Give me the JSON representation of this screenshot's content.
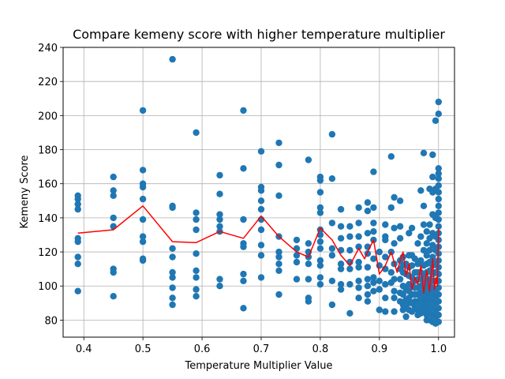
{
  "chart_data": {
    "type": "scatter",
    "title": "Compare kemeny score with higher temperature multiplier",
    "xlabel": "Temperature Multiplier Value",
    "ylabel": "Kemeny Score",
    "xlim": [
      0.365,
      1.027
    ],
    "ylim": [
      70,
      240
    ],
    "xticks": [
      0.4,
      0.5,
      0.6,
      0.7,
      0.8,
      0.9,
      1.0
    ],
    "xtick_labels": [
      "0.4",
      "0.5",
      "0.6",
      "0.7",
      "0.8",
      "0.9",
      "1.0"
    ],
    "yticks": [
      80,
      100,
      120,
      140,
      160,
      180,
      200,
      220,
      240
    ],
    "ytick_labels": [
      "80",
      "100",
      "120",
      "140",
      "160",
      "180",
      "200",
      "220",
      "240"
    ],
    "grid": true,
    "colors": {
      "points": "#1f77b4",
      "line": "#ff0000",
      "grid": "#b0b0b0"
    },
    "scatter_points": [
      [
        0.39,
        153
      ],
      [
        0.39,
        151
      ],
      [
        0.39,
        148
      ],
      [
        0.39,
        145
      ],
      [
        0.39,
        128
      ],
      [
        0.39,
        126
      ],
      [
        0.39,
        117
      ],
      [
        0.39,
        113
      ],
      [
        0.39,
        97
      ],
      [
        0.45,
        164
      ],
      [
        0.45,
        156
      ],
      [
        0.45,
        153
      ],
      [
        0.45,
        140
      ],
      [
        0.45,
        135
      ],
      [
        0.45,
        110
      ],
      [
        0.45,
        108
      ],
      [
        0.45,
        94
      ],
      [
        0.5,
        203
      ],
      [
        0.5,
        168
      ],
      [
        0.5,
        160
      ],
      [
        0.5,
        158
      ],
      [
        0.5,
        151
      ],
      [
        0.5,
        139
      ],
      [
        0.5,
        129
      ],
      [
        0.5,
        126
      ],
      [
        0.5,
        116
      ],
      [
        0.5,
        115
      ],
      [
        0.55,
        233
      ],
      [
        0.55,
        147
      ],
      [
        0.55,
        146
      ],
      [
        0.55,
        122
      ],
      [
        0.55,
        117
      ],
      [
        0.55,
        108
      ],
      [
        0.55,
        105
      ],
      [
        0.55,
        99
      ],
      [
        0.55,
        93
      ],
      [
        0.55,
        89
      ],
      [
        0.59,
        190
      ],
      [
        0.59,
        143
      ],
      [
        0.59,
        139
      ],
      [
        0.59,
        133
      ],
      [
        0.59,
        119
      ],
      [
        0.59,
        109
      ],
      [
        0.59,
        105
      ],
      [
        0.59,
        98
      ],
      [
        0.59,
        94
      ],
      [
        0.63,
        165
      ],
      [
        0.63,
        154
      ],
      [
        0.63,
        142
      ],
      [
        0.63,
        139
      ],
      [
        0.63,
        135
      ],
      [
        0.63,
        132
      ],
      [
        0.63,
        104
      ],
      [
        0.63,
        100
      ],
      [
        0.67,
        203
      ],
      [
        0.67,
        169
      ],
      [
        0.67,
        139
      ],
      [
        0.67,
        125
      ],
      [
        0.67,
        123
      ],
      [
        0.67,
        107
      ],
      [
        0.67,
        103
      ],
      [
        0.67,
        87
      ],
      [
        0.7,
        179
      ],
      [
        0.7,
        158
      ],
      [
        0.7,
        156
      ],
      [
        0.7,
        150
      ],
      [
        0.7,
        145
      ],
      [
        0.7,
        139
      ],
      [
        0.7,
        133
      ],
      [
        0.7,
        124
      ],
      [
        0.7,
        118
      ],
      [
        0.7,
        105
      ],
      [
        0.73,
        184
      ],
      [
        0.73,
        171
      ],
      [
        0.73,
        153
      ],
      [
        0.73,
        129
      ],
      [
        0.73,
        120
      ],
      [
        0.73,
        117
      ],
      [
        0.73,
        113
      ],
      [
        0.73,
        109
      ],
      [
        0.73,
        95
      ],
      [
        0.76,
        127
      ],
      [
        0.76,
        122
      ],
      [
        0.76,
        118
      ],
      [
        0.76,
        114
      ],
      [
        0.76,
        104
      ],
      [
        0.78,
        174
      ],
      [
        0.78,
        125
      ],
      [
        0.78,
        120
      ],
      [
        0.78,
        117
      ],
      [
        0.78,
        113
      ],
      [
        0.78,
        104
      ],
      [
        0.78,
        93
      ],
      [
        0.78,
        91
      ],
      [
        0.8,
        164
      ],
      [
        0.8,
        162
      ],
      [
        0.8,
        155
      ],
      [
        0.8,
        146
      ],
      [
        0.8,
        143
      ],
      [
        0.8,
        133
      ],
      [
        0.8,
        130
      ],
      [
        0.8,
        126
      ],
      [
        0.8,
        122
      ],
      [
        0.8,
        115
      ],
      [
        0.8,
        112
      ],
      [
        0.8,
        105
      ],
      [
        0.8,
        101
      ],
      [
        0.82,
        189
      ],
      [
        0.82,
        163
      ],
      [
        0.82,
        137
      ],
      [
        0.82,
        122
      ],
      [
        0.82,
        118
      ],
      [
        0.82,
        103
      ],
      [
        0.82,
        89
      ],
      [
        0.835,
        145
      ],
      [
        0.835,
        135
      ],
      [
        0.835,
        128
      ],
      [
        0.835,
        121
      ],
      [
        0.835,
        113
      ],
      [
        0.835,
        110
      ],
      [
        0.835,
        101
      ],
      [
        0.835,
        98
      ],
      [
        0.85,
        135
      ],
      [
        0.85,
        129
      ],
      [
        0.85,
        121
      ],
      [
        0.85,
        114
      ],
      [
        0.85,
        110
      ],
      [
        0.85,
        101
      ],
      [
        0.85,
        84
      ],
      [
        0.865,
        146
      ],
      [
        0.865,
        137
      ],
      [
        0.865,
        129
      ],
      [
        0.865,
        123
      ],
      [
        0.865,
        114
      ],
      [
        0.865,
        111
      ],
      [
        0.865,
        103
      ],
      [
        0.865,
        99
      ],
      [
        0.865,
        93
      ],
      [
        0.88,
        149
      ],
      [
        0.88,
        144
      ],
      [
        0.88,
        131
      ],
      [
        0.88,
        123
      ],
      [
        0.88,
        119
      ],
      [
        0.88,
        111
      ],
      [
        0.88,
        104
      ],
      [
        0.88,
        100
      ],
      [
        0.88,
        95
      ],
      [
        0.88,
        91
      ],
      [
        0.89,
        167
      ],
      [
        0.89,
        146
      ],
      [
        0.89,
        137
      ],
      [
        0.89,
        132
      ],
      [
        0.89,
        127
      ],
      [
        0.89,
        116
      ],
      [
        0.89,
        105
      ],
      [
        0.89,
        102
      ],
      [
        0.89,
        97
      ],
      [
        0.9,
        120
      ],
      [
        0.9,
        112
      ],
      [
        0.9,
        103
      ],
      [
        0.9,
        98
      ],
      [
        0.9,
        86
      ],
      [
        0.91,
        136
      ],
      [
        0.91,
        129
      ],
      [
        0.91,
        127
      ],
      [
        0.91,
        117
      ],
      [
        0.91,
        110
      ],
      [
        0.91,
        101
      ],
      [
        0.91,
        93
      ],
      [
        0.91,
        85
      ],
      [
        0.92,
        176
      ],
      [
        0.92,
        146
      ],
      [
        0.92,
        120
      ],
      [
        0.92,
        108
      ],
      [
        0.92,
        102
      ],
      [
        0.925,
        152
      ],
      [
        0.925,
        134
      ],
      [
        0.925,
        125
      ],
      [
        0.925,
        113
      ],
      [
        0.925,
        104
      ],
      [
        0.925,
        97
      ],
      [
        0.925,
        93
      ],
      [
        0.925,
        85
      ],
      [
        0.935,
        150
      ],
      [
        0.935,
        135
      ],
      [
        0.935,
        128
      ],
      [
        0.935,
        115
      ],
      [
        0.935,
        110
      ],
      [
        0.935,
        104
      ],
      [
        0.935,
        96
      ],
      [
        0.935,
        91
      ],
      [
        0.94,
        117
      ],
      [
        0.94,
        112
      ],
      [
        0.94,
        108
      ],
      [
        0.94,
        100
      ],
      [
        0.94,
        95
      ],
      [
        0.94,
        89
      ],
      [
        0.94,
        86
      ],
      [
        0.945,
        113
      ],
      [
        0.945,
        107
      ],
      [
        0.945,
        98
      ],
      [
        0.945,
        92
      ],
      [
        0.945,
        87
      ],
      [
        0.945,
        82
      ],
      [
        0.95,
        131
      ],
      [
        0.95,
        118
      ],
      [
        0.95,
        111
      ],
      [
        0.95,
        106
      ],
      [
        0.95,
        101
      ],
      [
        0.95,
        97
      ],
      [
        0.95,
        93
      ],
      [
        0.95,
        90
      ],
      [
        0.95,
        86
      ],
      [
        0.955,
        134
      ],
      [
        0.955,
        118
      ],
      [
        0.955,
        112
      ],
      [
        0.955,
        105
      ],
      [
        0.955,
        100
      ],
      [
        0.955,
        95
      ],
      [
        0.955,
        90
      ],
      [
        0.955,
        85
      ],
      [
        0.96,
        116
      ],
      [
        0.96,
        108
      ],
      [
        0.96,
        103
      ],
      [
        0.96,
        99
      ],
      [
        0.96,
        95
      ],
      [
        0.96,
        91
      ],
      [
        0.96,
        88
      ],
      [
        0.965,
        125
      ],
      [
        0.965,
        113
      ],
      [
        0.965,
        108
      ],
      [
        0.965,
        104
      ],
      [
        0.965,
        99
      ],
      [
        0.965,
        95
      ],
      [
        0.965,
        91
      ],
      [
        0.965,
        86
      ],
      [
        0.965,
        83
      ],
      [
        0.97,
        156
      ],
      [
        0.97,
        129
      ],
      [
        0.97,
        115
      ],
      [
        0.97,
        108
      ],
      [
        0.97,
        104
      ],
      [
        0.97,
        100
      ],
      [
        0.97,
        96
      ],
      [
        0.97,
        92
      ],
      [
        0.97,
        88
      ],
      [
        0.97,
        84
      ],
      [
        0.975,
        178
      ],
      [
        0.975,
        147
      ],
      [
        0.975,
        136
      ],
      [
        0.975,
        121
      ],
      [
        0.975,
        112
      ],
      [
        0.975,
        106
      ],
      [
        0.975,
        101
      ],
      [
        0.975,
        97
      ],
      [
        0.975,
        93
      ],
      [
        0.975,
        89
      ],
      [
        0.975,
        85
      ],
      [
        0.98,
        132
      ],
      [
        0.98,
        125
      ],
      [
        0.98,
        118
      ],
      [
        0.98,
        113
      ],
      [
        0.98,
        108
      ],
      [
        0.98,
        103
      ],
      [
        0.98,
        99
      ],
      [
        0.98,
        95
      ],
      [
        0.98,
        91
      ],
      [
        0.98,
        87
      ],
      [
        0.98,
        83
      ],
      [
        0.98,
        80
      ],
      [
        0.985,
        157
      ],
      [
        0.985,
        136
      ],
      [
        0.985,
        128
      ],
      [
        0.985,
        121
      ],
      [
        0.985,
        114
      ],
      [
        0.985,
        109
      ],
      [
        0.985,
        104
      ],
      [
        0.985,
        100
      ],
      [
        0.985,
        96
      ],
      [
        0.985,
        92
      ],
      [
        0.985,
        88
      ],
      [
        0.985,
        84
      ],
      [
        0.985,
        80
      ],
      [
        0.99,
        177
      ],
      [
        0.99,
        164
      ],
      [
        0.99,
        155
      ],
      [
        0.99,
        142
      ],
      [
        0.99,
        131
      ],
      [
        0.99,
        124
      ],
      [
        0.99,
        117
      ],
      [
        0.99,
        112
      ],
      [
        0.99,
        107
      ],
      [
        0.99,
        103
      ],
      [
        0.99,
        99
      ],
      [
        0.99,
        95
      ],
      [
        0.99,
        91
      ],
      [
        0.99,
        87
      ],
      [
        0.99,
        83
      ],
      [
        0.99,
        79
      ],
      [
        0.995,
        197
      ],
      [
        0.995,
        157
      ],
      [
        0.995,
        140
      ],
      [
        0.995,
        129
      ],
      [
        0.995,
        121
      ],
      [
        0.995,
        114
      ],
      [
        0.995,
        108
      ],
      [
        0.995,
        103
      ],
      [
        0.995,
        98
      ],
      [
        0.995,
        94
      ],
      [
        0.995,
        90
      ],
      [
        0.995,
        86
      ],
      [
        0.995,
        82
      ],
      [
        0.995,
        78
      ],
      [
        1.0,
        208
      ],
      [
        1.0,
        201
      ],
      [
        1.0,
        169
      ],
      [
        1.0,
        166
      ],
      [
        1.0,
        163
      ],
      [
        1.0,
        159
      ],
      [
        1.0,
        155
      ],
      [
        1.0,
        151
      ],
      [
        1.0,
        147
      ],
      [
        1.0,
        143
      ],
      [
        1.0,
        139
      ],
      [
        1.0,
        135
      ],
      [
        1.0,
        131
      ],
      [
        1.0,
        127
      ],
      [
        1.0,
        123
      ],
      [
        1.0,
        119
      ],
      [
        1.0,
        115
      ],
      [
        1.0,
        111
      ],
      [
        1.0,
        107
      ],
      [
        1.0,
        103
      ],
      [
        1.0,
        99
      ],
      [
        1.0,
        95
      ],
      [
        1.0,
        91
      ],
      [
        1.0,
        87
      ],
      [
        1.0,
        83
      ],
      [
        1.0,
        79
      ]
    ],
    "line_points": [
      [
        0.39,
        131
      ],
      [
        0.45,
        133
      ],
      [
        0.5,
        147
      ],
      [
        0.55,
        126
      ],
      [
        0.59,
        125.5
      ],
      [
        0.63,
        132
      ],
      [
        0.67,
        128
      ],
      [
        0.7,
        141
      ],
      [
        0.73,
        129
      ],
      [
        0.76,
        120
      ],
      [
        0.78,
        117
      ],
      [
        0.8,
        134
      ],
      [
        0.82,
        127
      ],
      [
        0.835,
        118
      ],
      [
        0.85,
        112
      ],
      [
        0.865,
        122
      ],
      [
        0.875,
        116
      ],
      [
        0.88,
        120
      ],
      [
        0.89,
        127
      ],
      [
        0.9,
        107
      ],
      [
        0.91,
        112
      ],
      [
        0.92,
        120
      ],
      [
        0.93,
        108
      ],
      [
        0.935,
        115
      ],
      [
        0.94,
        120
      ],
      [
        0.945,
        106
      ],
      [
        0.95,
        113
      ],
      [
        0.955,
        98
      ],
      [
        0.96,
        105
      ],
      [
        0.965,
        101
      ],
      [
        0.97,
        112
      ],
      [
        0.975,
        96
      ],
      [
        0.98,
        109
      ],
      [
        0.985,
        97
      ],
      [
        0.99,
        116
      ],
      [
        0.993,
        98
      ],
      [
        0.996,
        105
      ],
      [
        0.998,
        100
      ],
      [
        1.0,
        134
      ]
    ]
  }
}
